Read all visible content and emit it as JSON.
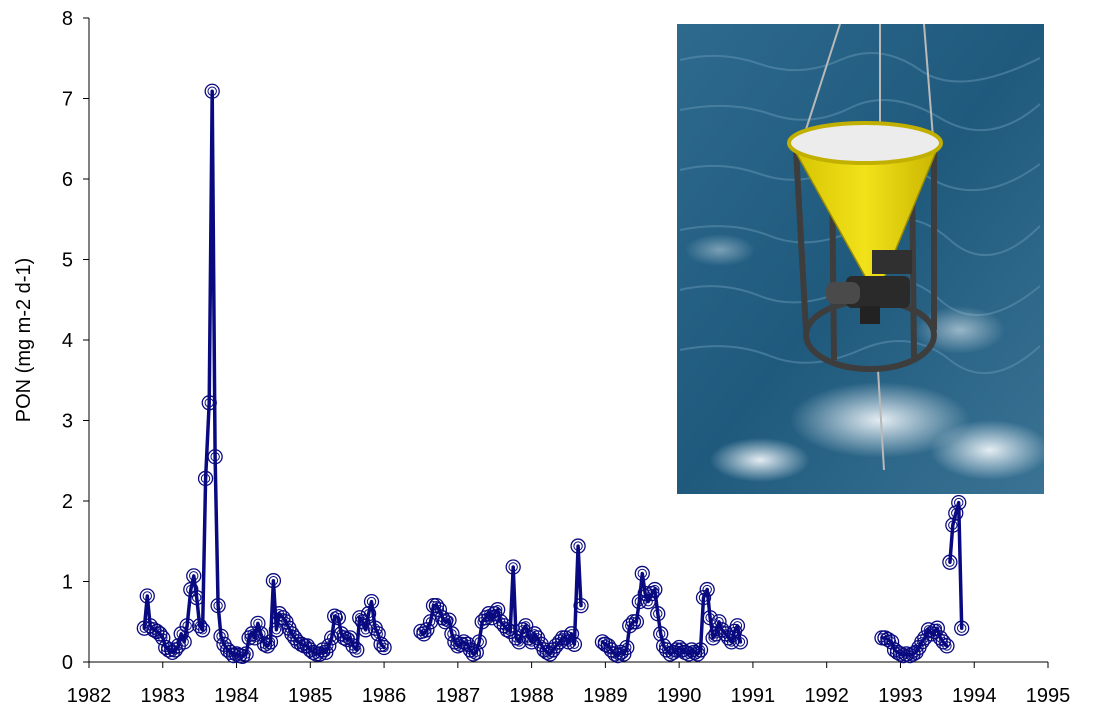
{
  "chart_data": {
    "type": "line",
    "title": "",
    "xlabel": "",
    "ylabel": "PON (mg m-2 d-1)",
    "xlim": [
      1982,
      1995
    ],
    "ylim": [
      0,
      8
    ],
    "x_ticks": [
      "1982",
      "1983",
      "1984",
      "1985",
      "1986",
      "1987",
      "1988",
      "1989",
      "1990",
      "1991",
      "1992",
      "1993",
      "1994",
      "1995"
    ],
    "y_ticks": [
      "0",
      "1",
      "2",
      "3",
      "4",
      "5",
      "6",
      "7",
      "8"
    ],
    "grid": false,
    "legend": "none",
    "series_color": "#0a0a80",
    "marker": "open-circle",
    "inset_photo": "sediment-trap-photo",
    "segments": [
      {
        "x": [
          1982.75,
          1982.79,
          1982.83,
          1982.88,
          1982.92,
          1982.96,
          1983.0,
          1983.04,
          1983.08,
          1983.13,
          1983.17,
          1983.21,
          1983.25,
          1983.29,
          1983.33,
          1983.38,
          1983.42,
          1983.46,
          1983.5,
          1983.54,
          1983.58,
          1983.63,
          1983.67,
          1983.71,
          1983.75,
          1983.79,
          1983.83,
          1983.88,
          1983.92,
          1983.96,
          1984.0,
          1984.04,
          1984.08,
          1984.13,
          1984.17,
          1984.21,
          1984.25,
          1984.29,
          1984.33,
          1984.38,
          1984.42,
          1984.46,
          1984.5,
          1984.54,
          1984.58,
          1984.63,
          1984.67,
          1984.71,
          1984.75,
          1984.79,
          1984.83,
          1984.88,
          1984.92,
          1984.96,
          1985.0,
          1985.04,
          1985.08,
          1985.13,
          1985.17,
          1985.21,
          1985.25,
          1985.29,
          1985.33,
          1985.38,
          1985.42,
          1985.46,
          1985.5,
          1985.54,
          1985.58,
          1985.63,
          1985.67,
          1985.71,
          1985.75,
          1985.79,
          1985.83,
          1985.88,
          1985.92,
          1985.96,
          1986.0
        ],
        "y": [
          0.42,
          0.82,
          0.45,
          0.4,
          0.38,
          0.35,
          0.3,
          0.18,
          0.15,
          0.12,
          0.15,
          0.2,
          0.35,
          0.25,
          0.45,
          0.9,
          1.07,
          0.8,
          0.45,
          0.4,
          2.28,
          3.22,
          7.09,
          2.55,
          0.7,
          0.32,
          0.22,
          0.15,
          0.12,
          0.08,
          0.1,
          0.08,
          0.07,
          0.1,
          0.3,
          0.35,
          0.3,
          0.48,
          0.35,
          0.22,
          0.2,
          0.25,
          1.01,
          0.4,
          0.6,
          0.55,
          0.5,
          0.42,
          0.35,
          0.3,
          0.25,
          0.22,
          0.2,
          0.2,
          0.15,
          0.12,
          0.1,
          0.1,
          0.15,
          0.12,
          0.2,
          0.3,
          0.57,
          0.55,
          0.35,
          0.3,
          0.28,
          0.3,
          0.2,
          0.15,
          0.55,
          0.5,
          0.4,
          0.6,
          0.75,
          0.42,
          0.35,
          0.22,
          0.18
        ]
      },
      {
        "x": [
          1986.5,
          1986.54,
          1986.58,
          1986.63,
          1986.67,
          1986.71,
          1986.75,
          1986.79,
          1986.83,
          1986.88,
          1986.92,
          1986.96,
          1987.0,
          1987.04,
          1987.08,
          1987.13,
          1987.17,
          1987.21,
          1987.25,
          1987.29,
          1987.33,
          1987.38,
          1987.42,
          1987.46,
          1987.5,
          1987.54,
          1987.58,
          1987.63,
          1987.67,
          1987.71,
          1987.75,
          1987.79,
          1987.83,
          1987.88,
          1987.92,
          1987.96,
          1988.0,
          1988.04,
          1988.08,
          1988.13,
          1988.17,
          1988.21,
          1988.25,
          1988.29,
          1988.33,
          1988.38,
          1988.42,
          1988.46,
          1988.5,
          1988.54,
          1988.58,
          1988.63,
          1988.67
        ],
        "y": [
          0.38,
          0.35,
          0.4,
          0.5,
          0.7,
          0.7,
          0.65,
          0.55,
          0.5,
          0.52,
          0.35,
          0.25,
          0.2,
          0.22,
          0.25,
          0.22,
          0.15,
          0.1,
          0.12,
          0.25,
          0.5,
          0.55,
          0.6,
          0.55,
          0.6,
          0.65,
          0.5,
          0.45,
          0.4,
          0.38,
          1.18,
          0.3,
          0.25,
          0.4,
          0.45,
          0.3,
          0.25,
          0.35,
          0.3,
          0.22,
          0.15,
          0.12,
          0.1,
          0.15,
          0.2,
          0.25,
          0.3,
          0.3,
          0.25,
          0.35,
          0.22,
          1.44,
          0.7
        ]
      },
      {
        "x": [
          1988.96,
          1989.0,
          1989.04,
          1989.08,
          1989.13,
          1989.17,
          1989.21,
          1989.25,
          1989.29,
          1989.33,
          1989.38,
          1989.42,
          1989.46,
          1989.5,
          1989.54,
          1989.58,
          1989.63,
          1989.67,
          1989.71,
          1989.75,
          1989.79,
          1989.83,
          1989.88,
          1989.92,
          1989.96,
          1990.0,
          1990.04,
          1990.08,
          1990.13,
          1990.17,
          1990.21,
          1990.25,
          1990.29,
          1990.33,
          1990.38,
          1990.42,
          1990.46,
          1990.5,
          1990.54,
          1990.58,
          1990.63,
          1990.67,
          1990.71,
          1990.75,
          1990.79,
          1990.83
        ],
        "y": [
          0.25,
          0.22,
          0.2,
          0.15,
          0.1,
          0.08,
          0.12,
          0.1,
          0.18,
          0.45,
          0.5,
          0.5,
          0.75,
          1.1,
          0.85,
          0.75,
          0.85,
          0.9,
          0.6,
          0.35,
          0.2,
          0.15,
          0.1,
          0.12,
          0.15,
          0.18,
          0.15,
          0.12,
          0.1,
          0.15,
          0.12,
          0.1,
          0.15,
          0.8,
          0.9,
          0.55,
          0.3,
          0.35,
          0.5,
          0.4,
          0.35,
          0.3,
          0.25,
          0.38,
          0.45,
          0.25
        ]
      },
      {
        "x": [
          1992.75,
          1992.79,
          1992.83,
          1992.88,
          1992.92,
          1992.96,
          1993.0,
          1993.04,
          1993.08,
          1993.13,
          1993.17,
          1993.21,
          1993.25,
          1993.29,
          1993.33,
          1993.38,
          1993.42,
          1993.46,
          1993.5,
          1993.54,
          1993.58,
          1993.63
        ],
        "y": [
          0.3,
          0.3,
          0.28,
          0.25,
          0.15,
          0.12,
          0.1,
          0.08,
          0.1,
          0.08,
          0.1,
          0.12,
          0.18,
          0.25,
          0.3,
          0.4,
          0.35,
          0.38,
          0.42,
          0.3,
          0.25,
          0.2
        ]
      },
      {
        "x": [
          1993.67,
          1993.71,
          1993.75,
          1993.79,
          1993.83
        ],
        "y": [
          1.24,
          1.7,
          1.85,
          1.98,
          0.42
        ]
      }
    ]
  }
}
